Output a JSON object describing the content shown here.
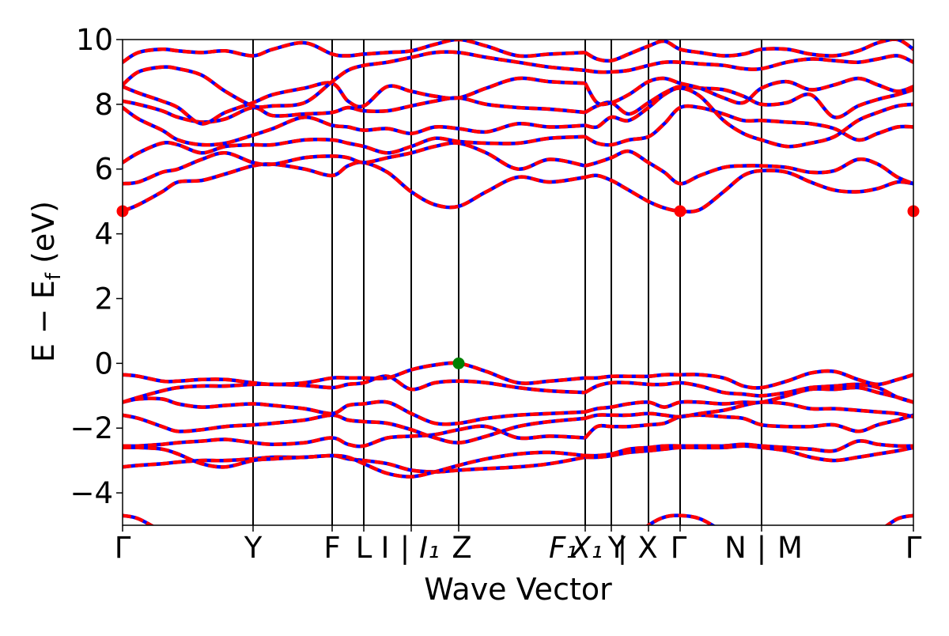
{
  "chart_data": {
    "type": "line",
    "title": "",
    "xlabel": "Wave Vector",
    "ylabel": "E − E_f (eV)",
    "ylabel_parts": {
      "main": "E − E",
      "sub": "f",
      "unit": " (eV)"
    },
    "ylim": [
      -5,
      10
    ],
    "yticks": [
      -4,
      -2,
      0,
      2,
      4,
      6,
      8,
      10
    ],
    "xlim": [
      0,
      100
    ],
    "grid": false,
    "legend": "none",
    "colors": {
      "band_dft": "#0000ff",
      "band_interp": "#ff0000",
      "cbm": "#ff0000",
      "vbm": "#008000"
    },
    "k_points": [
      {
        "label": "Γ",
        "x": 0
      },
      {
        "label": "Y",
        "x": 16.5
      },
      {
        "label": "F",
        "x": 26.5
      },
      {
        "label": "L",
        "x": 30.5
      },
      {
        "label": "I | I₁",
        "x": 36.5
      },
      {
        "label": "Z",
        "x": 42.5
      },
      {
        "label": "F₁",
        "x": 58.5
      },
      {
        "label": "X₁ | Y",
        "x": 61.8
      },
      {
        "label": "X",
        "x": 66.5
      },
      {
        "label": "Γ",
        "x": 70.5
      },
      {
        "label": "N | M",
        "x": 80.8
      },
      {
        "label": "Γ",
        "x": 100
      }
    ],
    "tick_label_text": [
      {
        "text": "Γ",
        "x": 0
      },
      {
        "text": "Y",
        "x": 16.5
      },
      {
        "text": "F",
        "x": 26.5
      },
      {
        "text": "L",
        "x": 30.5
      },
      {
        "text": "I",
        "x": 33.2
      },
      {
        "text": "|",
        "x": 35.7
      },
      {
        "text": "I₁",
        "x": 38.8
      },
      {
        "text": "Z",
        "x": 42.9
      },
      {
        "text": "F₁",
        "x": 55.7
      },
      {
        "text": "X₁",
        "x": 58.7
      },
      {
        "text": "Y",
        "x": 62.5
      },
      {
        "text": "|",
        "x": 63.2
      },
      {
        "text": "X",
        "x": 66.4
      },
      {
        "text": "Γ",
        "x": 70.3
      },
      {
        "text": "N",
        "x": 77.5
      },
      {
        "text": "|",
        "x": 80.8
      },
      {
        "text": "M",
        "x": 84.4
      },
      {
        "text": "Γ",
        "x": 100
      }
    ],
    "segment_breaks": [
      58.5
    ],
    "x": [
      0,
      2,
      5,
      7,
      10,
      13,
      16.5,
      19,
      23,
      26.5,
      28.5,
      30.5,
      33.5,
      36.5,
      39.5,
      42.5,
      46,
      50,
      54,
      58.5,
      60,
      61.8,
      64,
      66.5,
      68.5,
      70.5,
      73,
      76,
      78.5,
      80.8,
      84,
      87,
      90,
      93,
      95.5,
      98,
      100
    ],
    "series": [
      {
        "values": [
          -4.7,
          -4.8,
          -5.2,
          -5.5,
          -5.5,
          -5.5,
          -5.5,
          -5.5,
          -5.5,
          -5.5,
          -5.5,
          -5.5,
          -5.5,
          -5.5,
          -5.5,
          -5.5,
          -5.5,
          -5.5,
          -5.5,
          -5.5,
          -5.5,
          -5.5,
          -5.5,
          -5.0,
          -4.75,
          -4.7,
          -4.8,
          -5.2,
          -5.5,
          -5.5,
          -5.5,
          -5.5,
          -5.5,
          -5.5,
          -5.2,
          -4.8,
          -4.7
        ]
      },
      {
        "values": [
          -3.2,
          -3.15,
          -3.1,
          -3.05,
          -3.0,
          -3.0,
          -2.95,
          -2.9,
          -2.9,
          -2.85,
          -2.95,
          -3.0,
          -3.1,
          -3.3,
          -3.35,
          -3.3,
          -3.25,
          -3.2,
          -3.1,
          -2.9,
          -2.9,
          -2.85,
          -2.75,
          -2.7,
          -2.65,
          -2.6,
          -2.6,
          -2.6,
          -2.55,
          -2.6,
          -2.7,
          -2.9,
          -3.0,
          -2.9,
          -2.8,
          -2.7,
          -2.6
        ]
      },
      {
        "values": [
          -2.6,
          -2.6,
          -2.65,
          -2.8,
          -3.1,
          -3.2,
          -3.0,
          -2.95,
          -2.9,
          -2.85,
          -2.9,
          -3.1,
          -3.4,
          -3.5,
          -3.35,
          -3.15,
          -2.95,
          -2.8,
          -2.75,
          -2.85,
          -2.85,
          -2.8,
          -2.65,
          -2.6,
          -2.55,
          -2.55,
          -2.55,
          -2.55,
          -2.5,
          -2.55,
          -2.6,
          -2.65,
          -2.7,
          -2.4,
          -2.5,
          -2.55,
          -2.55
        ]
      },
      {
        "values": [
          -2.55,
          -2.55,
          -2.5,
          -2.45,
          -2.4,
          -2.35,
          -2.45,
          -2.5,
          -2.45,
          -2.3,
          -2.5,
          -2.55,
          -2.3,
          -2.25,
          -2.2,
          -2.05,
          -1.95,
          -2.3,
          -2.25,
          -2.3,
          -1.95,
          -1.95,
          -1.95,
          -1.9,
          -1.85,
          -1.65,
          -1.6,
          -1.65,
          -1.7,
          -1.9,
          -1.95,
          -1.95,
          -1.9,
          -2.1,
          -1.9,
          -1.75,
          -1.6
        ]
      },
      {
        "values": [
          -1.6,
          -1.7,
          -1.95,
          -2.1,
          -2.05,
          -1.95,
          -1.9,
          -1.85,
          -1.75,
          -1.6,
          -1.75,
          -1.8,
          -1.85,
          -2.05,
          -2.3,
          -2.45,
          -2.25,
          -1.95,
          -1.8,
          -1.7,
          -1.6,
          -1.6,
          -1.6,
          -1.55,
          -1.6,
          -1.65,
          -1.55,
          -1.45,
          -1.3,
          -1.2,
          -1.25,
          -1.4,
          -1.4,
          -1.45,
          -1.5,
          -1.55,
          -1.65
        ]
      },
      {
        "values": [
          -1.2,
          -1.1,
          -1.1,
          -1.25,
          -1.35,
          -1.3,
          -1.25,
          -1.3,
          -1.4,
          -1.55,
          -1.3,
          -1.25,
          -1.2,
          -1.55,
          -1.85,
          -1.85,
          -1.7,
          -1.6,
          -1.55,
          -1.5,
          -1.4,
          -1.35,
          -1.25,
          -1.2,
          -1.35,
          -1.2,
          -1.2,
          -1.25,
          -1.2,
          -1.2,
          -1.0,
          -0.8,
          -0.8,
          -0.75,
          -0.9,
          -1.05,
          -1.2
        ]
      },
      {
        "values": [
          -1.2,
          -1.05,
          -0.85,
          -0.75,
          -0.7,
          -0.7,
          -0.65,
          -0.65,
          -0.68,
          -0.75,
          -0.65,
          -0.6,
          -0.4,
          -0.8,
          -0.6,
          -0.55,
          -0.6,
          -0.75,
          -0.85,
          -0.9,
          -0.7,
          -0.6,
          -0.6,
          -0.65,
          -0.65,
          -0.6,
          -0.7,
          -0.9,
          -0.95,
          -1.0,
          -0.9,
          -0.75,
          -0.7,
          -0.65,
          -0.75,
          -1.05,
          -1.2
        ]
      },
      {
        "values": [
          -0.35,
          -0.4,
          -0.55,
          -0.55,
          -0.5,
          -0.5,
          -0.6,
          -0.65,
          -0.6,
          -0.45,
          -0.45,
          -0.45,
          -0.45,
          -0.2,
          -0.05,
          0.0,
          -0.25,
          -0.6,
          -0.55,
          -0.45,
          -0.45,
          -0.4,
          -0.4,
          -0.4,
          -0.35,
          -0.35,
          -0.35,
          -0.45,
          -0.7,
          -0.75,
          -0.55,
          -0.3,
          -0.25,
          -0.5,
          -0.65,
          -0.5,
          -0.35
        ]
      },
      {
        "values": [
          4.7,
          4.9,
          5.3,
          5.6,
          5.65,
          5.85,
          6.1,
          6.15,
          6.0,
          5.8,
          6.1,
          6.2,
          5.9,
          5.3,
          4.9,
          4.85,
          5.3,
          5.75,
          5.6,
          5.75,
          5.8,
          5.65,
          5.35,
          5.0,
          4.8,
          4.7,
          4.75,
          5.3,
          5.8,
          5.95,
          5.9,
          5.6,
          5.35,
          5.3,
          5.4,
          5.6,
          5.55
        ]
      },
      {
        "values": [
          5.55,
          5.6,
          5.9,
          6.0,
          6.3,
          6.5,
          6.2,
          6.15,
          6.35,
          6.4,
          6.35,
          6.2,
          6.35,
          6.5,
          6.7,
          6.8,
          6.5,
          6.0,
          6.3,
          6.1,
          6.2,
          6.35,
          6.55,
          6.2,
          5.9,
          5.55,
          5.8,
          6.05,
          6.1,
          6.1,
          6.05,
          5.9,
          5.95,
          6.3,
          6.15,
          5.75,
          5.55
        ]
      },
      {
        "values": [
          6.2,
          6.5,
          6.8,
          6.75,
          6.5,
          6.7,
          6.75,
          6.75,
          6.9,
          6.9,
          6.8,
          6.7,
          6.5,
          6.7,
          6.95,
          6.85,
          6.8,
          6.8,
          6.95,
          7.0,
          6.8,
          6.75,
          6.9,
          7.0,
          7.4,
          7.9,
          7.9,
          7.7,
          7.5,
          7.5,
          7.45,
          7.4,
          7.25,
          6.9,
          7.1,
          7.3,
          7.3
        ]
      },
      {
        "values": [
          7.9,
          7.55,
          7.2,
          6.9,
          6.75,
          6.8,
          7.05,
          7.25,
          7.6,
          7.35,
          7.3,
          7.2,
          7.25,
          7.1,
          7.3,
          7.25,
          7.15,
          7.4,
          7.3,
          7.35,
          7.3,
          7.6,
          7.5,
          7.9,
          8.3,
          8.5,
          8.25,
          7.5,
          7.1,
          6.9,
          6.7,
          6.8,
          7.0,
          7.5,
          7.75,
          7.95,
          8.0
        ]
      },
      {
        "values": [
          8.1,
          8.0,
          7.8,
          7.6,
          7.45,
          7.55,
          7.9,
          7.65,
          7.7,
          7.75,
          7.9,
          7.8,
          7.8,
          7.95,
          8.1,
          8.2,
          8.0,
          7.9,
          7.85,
          7.75,
          7.95,
          8.05,
          7.7,
          8.05,
          8.35,
          8.55,
          8.5,
          8.45,
          8.25,
          8.0,
          8.05,
          8.3,
          7.6,
          7.95,
          8.15,
          8.3,
          8.45
        ]
      },
      {
        "values": [
          8.55,
          8.35,
          8.1,
          7.9,
          7.4,
          7.75,
          8.05,
          8.3,
          8.5,
          8.65,
          8.1,
          7.95,
          8.55,
          8.4,
          8.25,
          8.2,
          8.5,
          8.8,
          8.7,
          8.65,
          8.05,
          8.05,
          8.3,
          8.7,
          8.8,
          8.65,
          8.5,
          8.2,
          8.05,
          8.5,
          8.7,
          8.45,
          8.6,
          8.8,
          8.6,
          8.4,
          8.55
        ]
      },
      {
        "values": [
          8.6,
          9.0,
          9.15,
          9.1,
          8.9,
          8.4,
          7.95,
          7.95,
          8.05,
          8.7,
          9.05,
          9.2,
          9.3,
          9.45,
          9.6,
          9.6,
          9.45,
          9.3,
          9.15,
          9.05,
          9.0,
          9.0,
          9.05,
          9.2,
          9.3,
          9.3,
          9.25,
          9.2,
          9.1,
          9.1,
          9.3,
          9.4,
          9.35,
          9.3,
          9.4,
          9.5,
          9.3
        ]
      },
      {
        "values": [
          9.3,
          9.6,
          9.7,
          9.65,
          9.6,
          9.65,
          9.5,
          9.7,
          9.9,
          9.55,
          9.5,
          9.55,
          9.6,
          9.65,
          9.85,
          10.0,
          9.8,
          9.5,
          9.55,
          9.6,
          9.4,
          9.35,
          9.55,
          9.8,
          9.95,
          9.7,
          9.6,
          9.5,
          9.55,
          9.7,
          9.7,
          9.55,
          9.5,
          9.65,
          9.9,
          10.0,
          9.7
        ]
      }
    ],
    "markers": [
      {
        "kind": "cbm",
        "x": 0,
        "y": 4.7
      },
      {
        "kind": "cbm",
        "x": 70.5,
        "y": 4.7
      },
      {
        "kind": "cbm",
        "x": 100,
        "y": 4.7
      },
      {
        "kind": "vbm",
        "x": 42.5,
        "y": 0.0
      }
    ]
  }
}
